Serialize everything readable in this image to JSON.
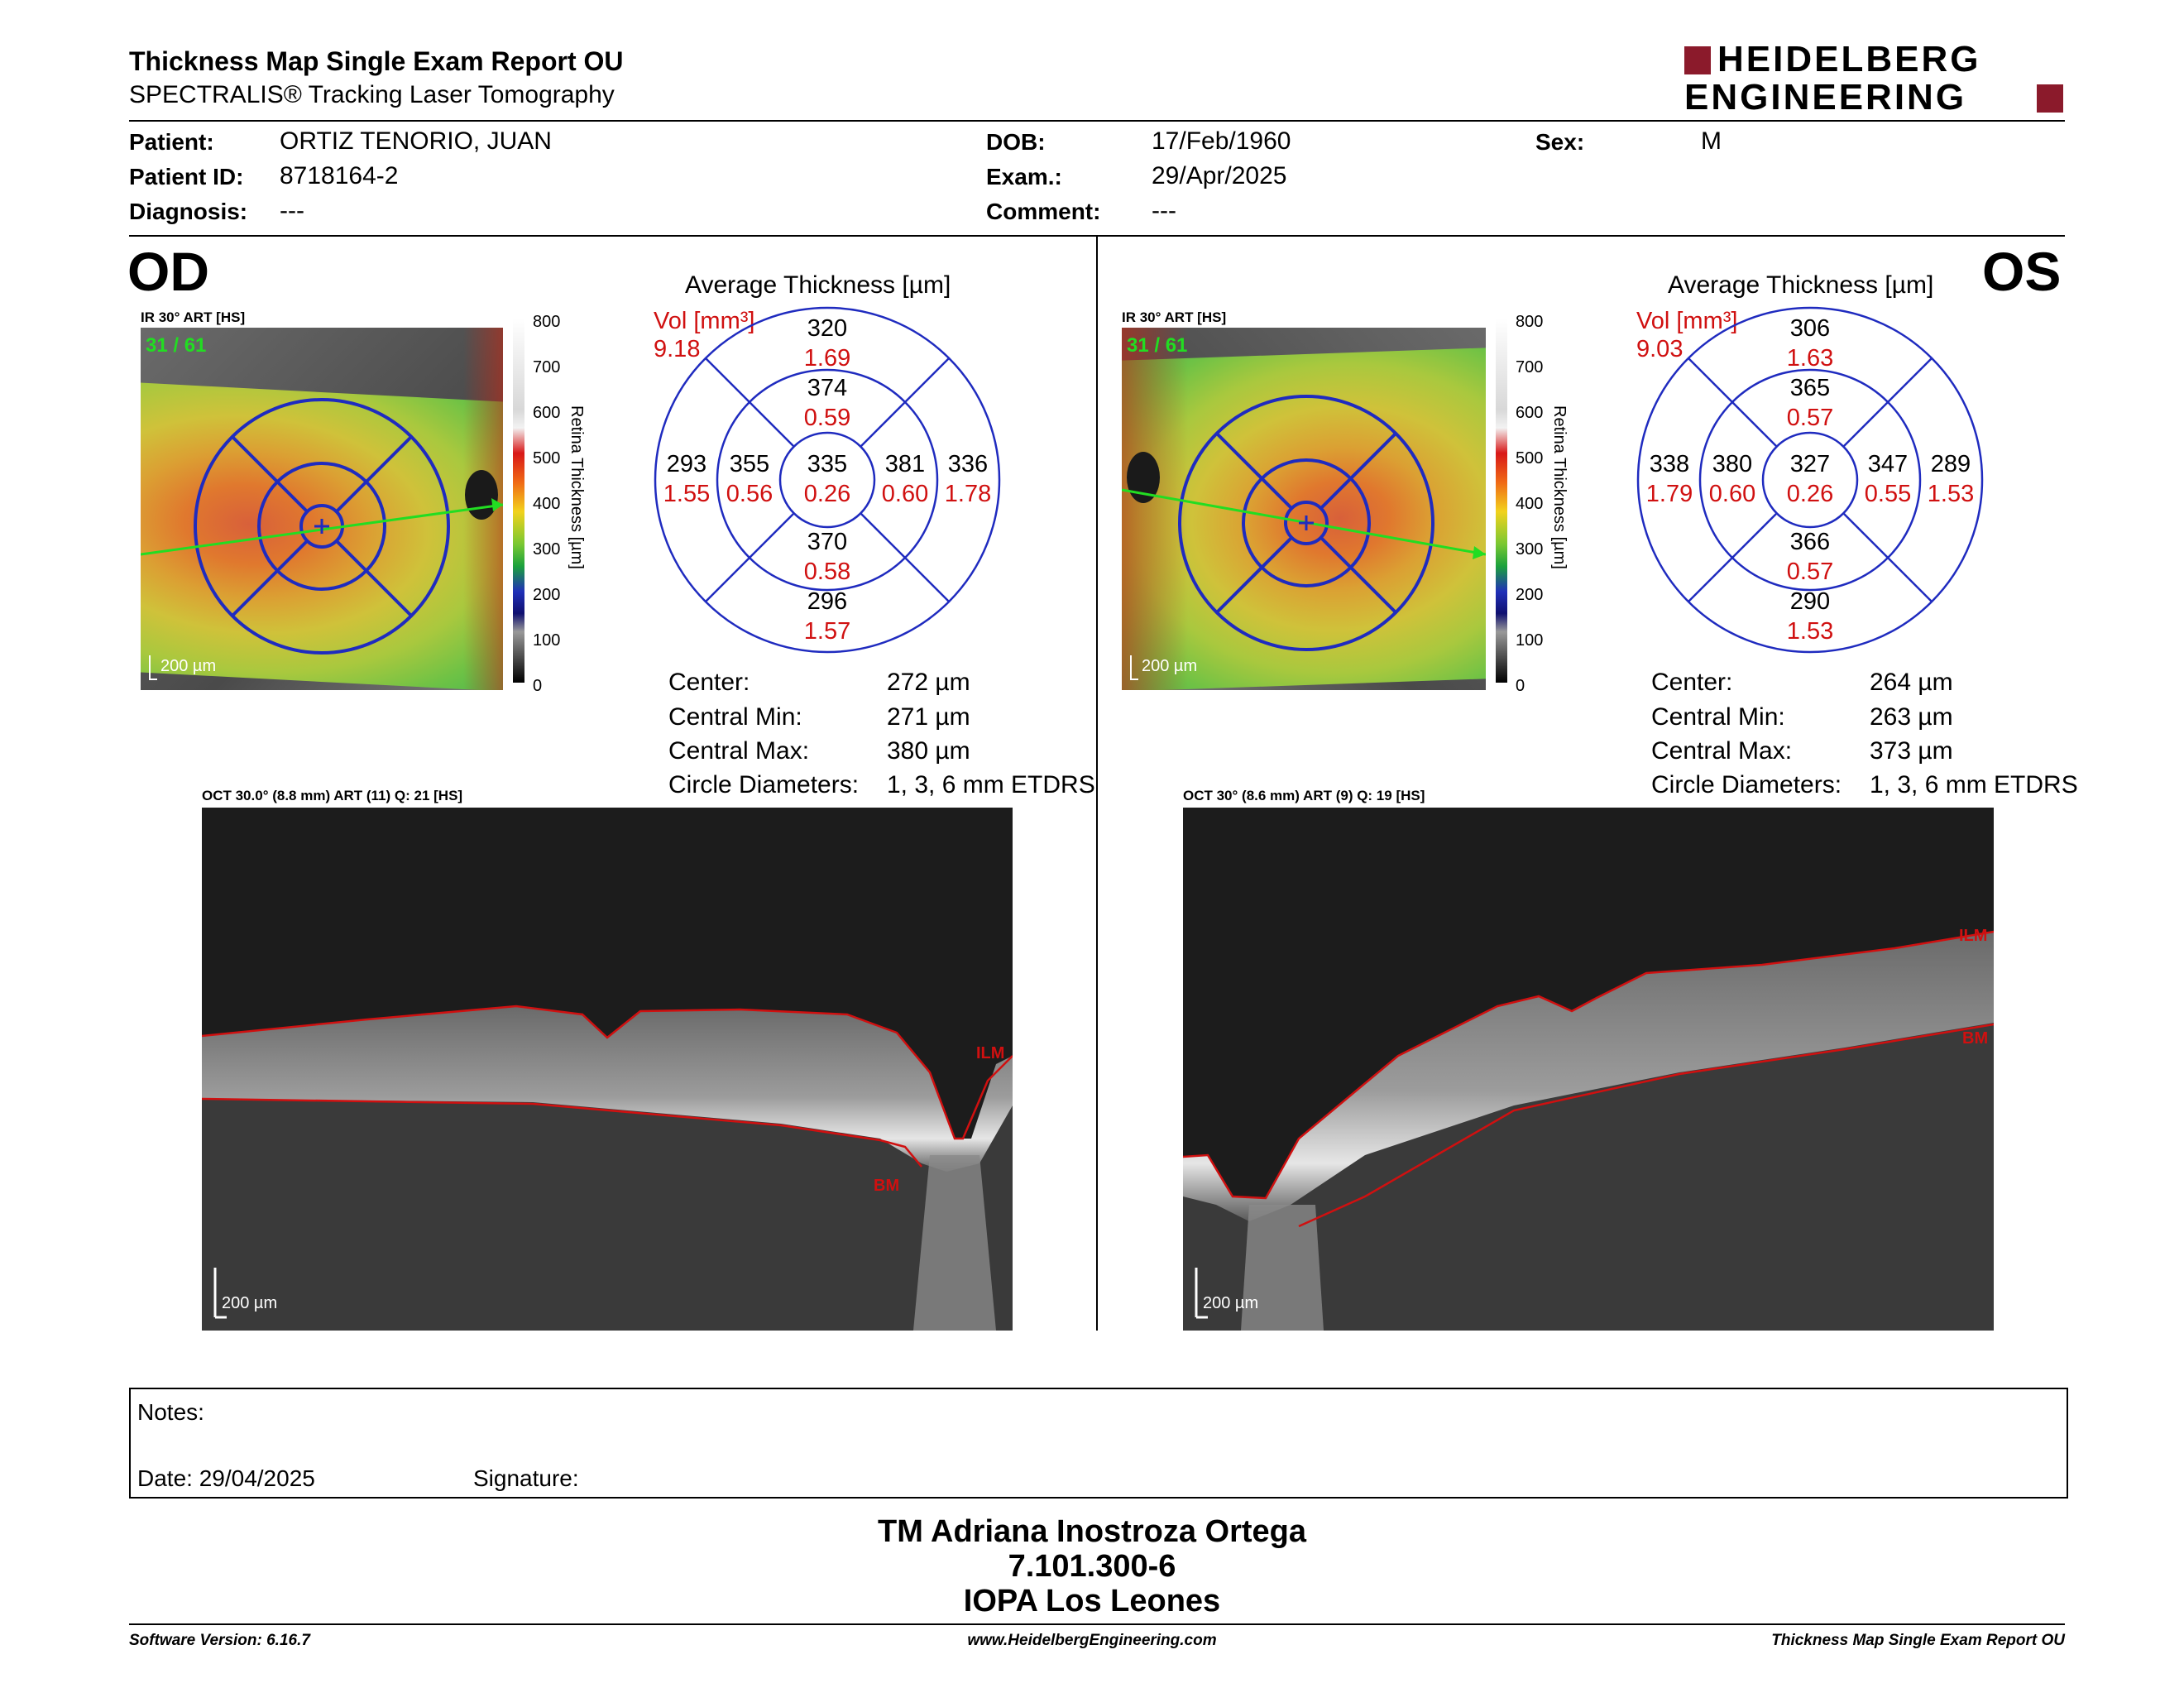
{
  "header": {
    "title": "Thickness Map Single Exam Report OU",
    "subtitle": "SPECTRALIS® Tracking Laser Tomography",
    "logo_line1": "HEIDELBERG",
    "logo_line2": "ENGINEERING",
    "brand_color": "#8b1a2b"
  },
  "patient": {
    "patient_label": "Patient:",
    "patient_value": "ORTIZ TENORIO, JUAN",
    "id_label": "Patient ID:",
    "id_value": "8718164-2",
    "diagnosis_label": "Diagnosis:",
    "diagnosis_value": "---",
    "dob_label": "DOB:",
    "dob_value": "17/Feb/1960",
    "exam_label": "Exam.:",
    "exam_value": "29/Apr/2025",
    "comment_label": "Comment:",
    "comment_value": "---",
    "sex_label": "Sex:",
    "sex_value": "M"
  },
  "scale": {
    "ticks": [
      "800",
      "700",
      "600",
      "500",
      "400",
      "300",
      "200",
      "100",
      "0"
    ],
    "label": "Retina Thickness [µm]"
  },
  "od": {
    "eye": "OD",
    "ir_label": "IR 30° ART [HS]",
    "frames": "31 / 61",
    "map_scalebar": "200 µm",
    "avg_title": "Average Thickness [µm]",
    "vol_label": "Vol [mm³]",
    "vol_value": "9.18",
    "grid": {
      "center": {
        "t": "335",
        "v": "0.26"
      },
      "inner_sup": {
        "t": "374",
        "v": "0.59"
      },
      "inner_inf": {
        "t": "370",
        "v": "0.58"
      },
      "inner_temp": {
        "t": "355",
        "v": "0.56"
      },
      "inner_nas": {
        "t": "381",
        "v": "0.60"
      },
      "outer_sup": {
        "t": "320",
        "v": "1.69"
      },
      "outer_inf": {
        "t": "296",
        "v": "1.57"
      },
      "outer_temp": {
        "t": "293",
        "v": "1.55"
      },
      "outer_nas": {
        "t": "336",
        "v": "1.78"
      }
    },
    "stats": {
      "center_label": "Center:",
      "center_value": "272 µm",
      "cmin_label": "Central Min:",
      "cmin_value": "271 µm",
      "cmax_label": "Central Max:",
      "cmax_value": "380 µm",
      "circ_label": "Circle Diameters:",
      "circ_value": "1, 3, 6 mm ETDRS"
    },
    "oct_label": "OCT 30.0° (8.8 mm) ART (11) Q: 21 [HS]",
    "oct_scalebar": "200 µm",
    "ilm": "ILM",
    "bm": "BM"
  },
  "os": {
    "eye": "OS",
    "ir_label": "IR 30° ART [HS]",
    "frames": "31 / 61",
    "map_scalebar": "200 µm",
    "avg_title": "Average Thickness [µm]",
    "vol_label": "Vol [mm³]",
    "vol_value": "9.03",
    "grid": {
      "center": {
        "t": "327",
        "v": "0.26"
      },
      "inner_sup": {
        "t": "365",
        "v": "0.57"
      },
      "inner_inf": {
        "t": "366",
        "v": "0.57"
      },
      "inner_temp": {
        "t": "347",
        "v": "0.55"
      },
      "inner_nas": {
        "t": "380",
        "v": "0.60"
      },
      "outer_sup": {
        "t": "306",
        "v": "1.63"
      },
      "outer_inf": {
        "t": "290",
        "v": "1.53"
      },
      "outer_temp": {
        "t": "289",
        "v": "1.53"
      },
      "outer_nas": {
        "t": "338",
        "v": "1.79"
      }
    },
    "stats": {
      "center_label": "Center:",
      "center_value": "264 µm",
      "cmin_label": "Central Min:",
      "cmin_value": "263 µm",
      "cmax_label": "Central Max:",
      "cmax_value": "373 µm",
      "circ_label": "Circle Diameters:",
      "circ_value": "1, 3, 6 mm ETDRS"
    },
    "oct_label": "OCT 30° (8.6 mm) ART (9) Q: 19 [HS]",
    "oct_scalebar": "200 µm",
    "ilm": "ILM",
    "bm": "BM"
  },
  "notes": {
    "notes_label": "Notes:",
    "date_label": "Date: 29/04/2025",
    "signature_label": "Signature:"
  },
  "signer": {
    "name": "TM Adriana Inostroza Ortega",
    "id": "7.101.300-6",
    "institution": "IOPA Los Leones"
  },
  "footer": {
    "software": "Software Version: 6.16.7",
    "website": "www.HeidelbergEngineering.com",
    "report": "Thickness Map Single Exam Report OU"
  }
}
